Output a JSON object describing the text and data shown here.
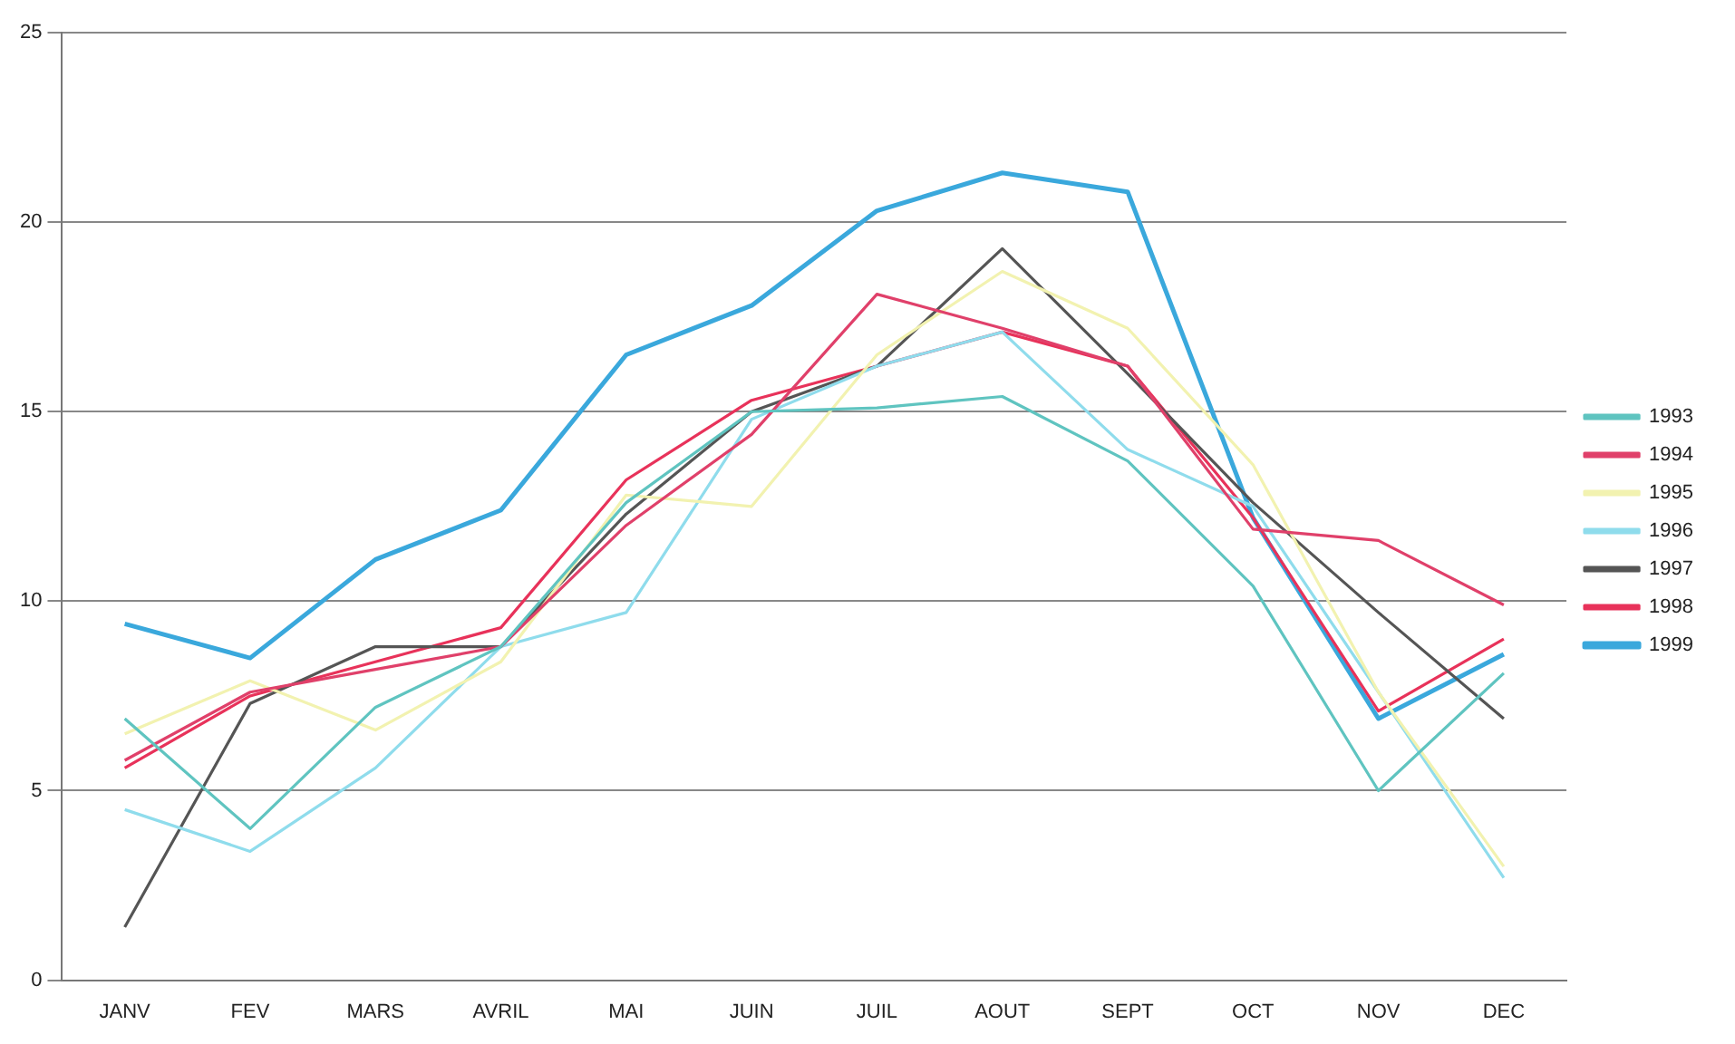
{
  "chart_data": {
    "type": "line",
    "categories": [
      "JANV",
      "FEV",
      "MARS",
      "AVRIL",
      "MAI",
      "JUIN",
      "JUIL",
      "AOUT",
      "SEPT",
      "OCT",
      "NOV",
      "DEC"
    ],
    "series": [
      {
        "name": "1993",
        "color": "#5fc4c0",
        "values": [
          6.9,
          4.0,
          7.2,
          8.8,
          12.6,
          15.0,
          15.1,
          15.4,
          13.7,
          10.4,
          5.0,
          8.1
        ]
      },
      {
        "name": "1994",
        "color": "#e0406a",
        "values": [
          5.8,
          7.6,
          8.2,
          8.8,
          12.0,
          14.4,
          18.1,
          17.2,
          16.2,
          11.9,
          11.6,
          9.9
        ]
      },
      {
        "name": "1995",
        "color": "#f2f2b0",
        "values": [
          6.5,
          7.9,
          6.6,
          8.4,
          12.8,
          12.5,
          16.5,
          18.7,
          17.2,
          13.6,
          7.6,
          3.0
        ]
      },
      {
        "name": "1996",
        "color": "#8fdcec",
        "values": [
          4.5,
          3.4,
          5.6,
          8.8,
          9.7,
          14.8,
          16.2,
          17.1,
          14.0,
          12.5,
          7.6,
          2.7
        ]
      },
      {
        "name": "1997",
        "color": "#555555",
        "values": [
          1.4,
          7.3,
          8.8,
          8.8,
          12.3,
          15.0,
          16.2,
          19.3,
          16.0,
          12.6,
          9.7,
          6.9
        ]
      },
      {
        "name": "1998",
        "color": "#e8325a",
        "values": [
          5.6,
          7.5,
          8.4,
          9.3,
          13.2,
          15.3,
          16.2,
          17.1,
          16.2,
          12.2,
          7.1,
          9.0
        ]
      },
      {
        "name": "1999",
        "color": "#3aa8dc",
        "values": [
          9.4,
          8.5,
          11.1,
          12.4,
          16.5,
          17.8,
          20.3,
          21.3,
          20.8,
          12.2,
          6.9,
          8.6
        ]
      }
    ],
    "ylim": [
      0,
      25
    ],
    "yticks": [
      0,
      5,
      10,
      15,
      20,
      25
    ],
    "grid": "y",
    "legend": "right",
    "marker": "none",
    "line_style": "solid"
  }
}
